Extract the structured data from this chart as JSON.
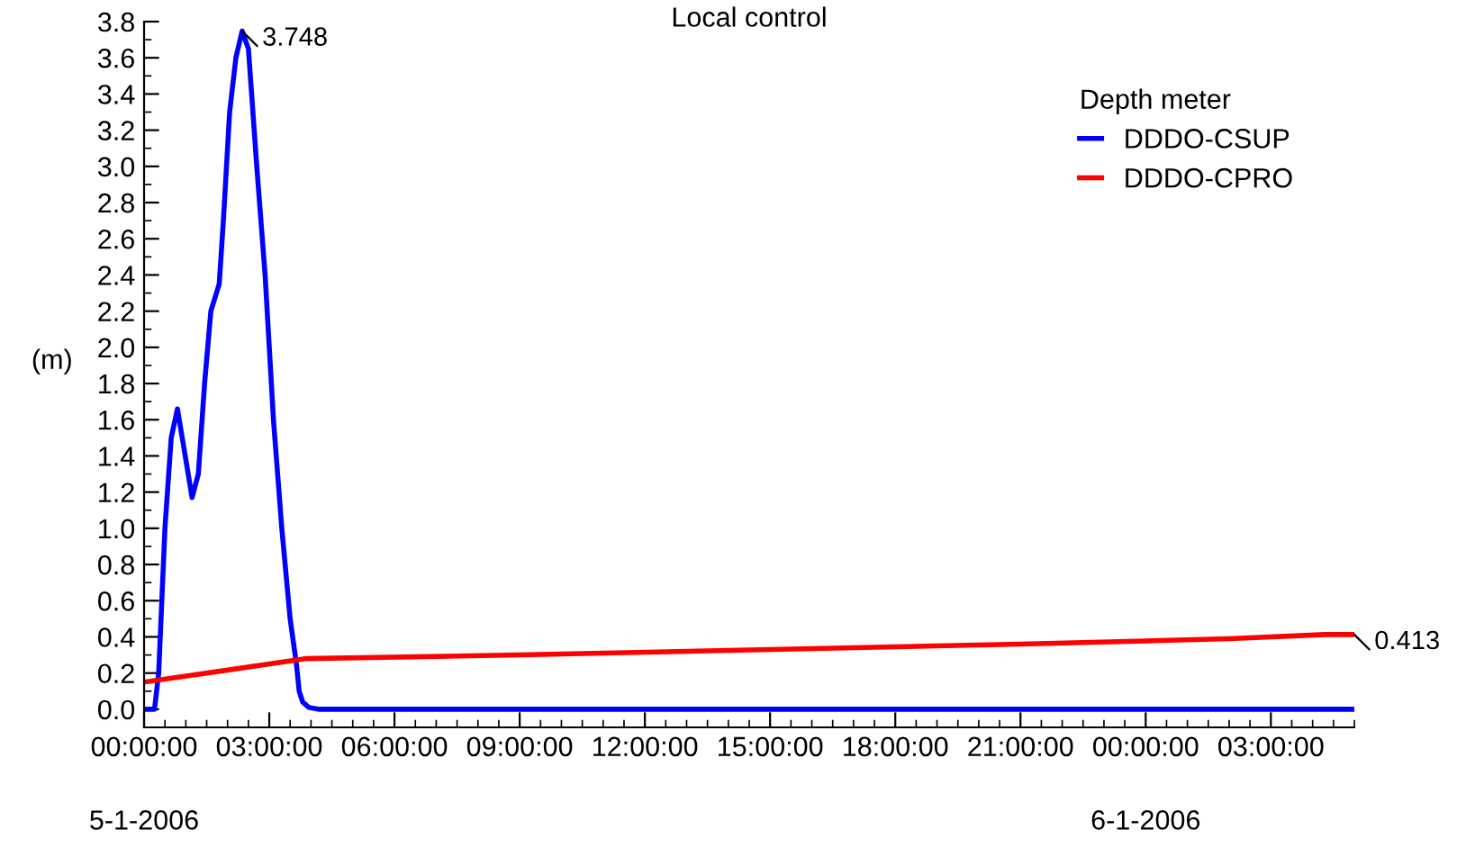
{
  "chart_data": {
    "type": "line",
    "title": "Local control",
    "ylabel": "(m)",
    "legend_title": "Depth meter",
    "legend": "top right",
    "grid": false,
    "xlim": [
      "2006-01-05T00:00",
      "2006-01-06T05:00"
    ],
    "xticks": [
      {
        "value": "2006-01-05T00:00",
        "label": "00:00:00"
      },
      {
        "value": "2006-01-05T03:00",
        "label": "03:00:00"
      },
      {
        "value": "2006-01-05T06:00",
        "label": "06:00:00"
      },
      {
        "value": "2006-01-05T09:00",
        "label": "09:00:00"
      },
      {
        "value": "2006-01-05T12:00",
        "label": "12:00:00"
      },
      {
        "value": "2006-01-05T15:00",
        "label": "15:00:00"
      },
      {
        "value": "2006-01-05T18:00",
        "label": "18:00:00"
      },
      {
        "value": "2006-01-05T21:00",
        "label": "21:00:00"
      },
      {
        "value": "2006-01-06T00:00",
        "label": "00:00:00"
      },
      {
        "value": "2006-01-06T03:00",
        "label": "03:00:00"
      }
    ],
    "ylim": [
      -0.1,
      3.8
    ],
    "yticks": [
      {
        "value": 0,
        "label": "0.0"
      },
      {
        "value": 0.2,
        "label": "0.2"
      },
      {
        "value": 0.4,
        "label": "0.4"
      },
      {
        "value": 0.6,
        "label": "0.6"
      },
      {
        "value": 0.8,
        "label": "0.8"
      },
      {
        "value": 1.0,
        "label": "1.0"
      },
      {
        "value": 1.2,
        "label": "1.2"
      },
      {
        "value": 1.4,
        "label": "1.4"
      },
      {
        "value": 1.6,
        "label": "1.6"
      },
      {
        "value": 1.8,
        "label": "1.8"
      },
      {
        "value": 2.0,
        "label": "2.0"
      },
      {
        "value": 2.2,
        "label": "2.2"
      },
      {
        "value": 2.4,
        "label": "2.4"
      },
      {
        "value": 2.6,
        "label": "2.6"
      },
      {
        "value": 2.8,
        "label": "2.8"
      },
      {
        "value": 3.0,
        "label": "3.0"
      },
      {
        "value": 3.2,
        "label": "3.2"
      },
      {
        "value": 3.4,
        "label": "3.4"
      },
      {
        "value": 3.6,
        "label": "3.6"
      },
      {
        "value": 3.8,
        "label": "3.8"
      }
    ],
    "annotations": [
      "5-1-2006",
      "6-1-2006",
      {
        "text": "3.748",
        "x": "2006-01-05T02:21",
        "y": 3.748
      },
      {
        "text": "0.413",
        "x": "2006-01-06T05:00",
        "y": 0.413
      }
    ],
    "series": [
      {
        "name": "DDDO-CSUP",
        "color": "#0000ff",
        "x": [
          "2006-01-05T00:00",
          "2006-01-05T00:15",
          "2006-01-05T00:21",
          "2006-01-05T00:30",
          "2006-01-05T00:39",
          "2006-01-05T00:48",
          "2006-01-05T00:57",
          "2006-01-05T01:09",
          "2006-01-05T01:18",
          "2006-01-05T01:27",
          "2006-01-05T01:36",
          "2006-01-05T01:48",
          "2006-01-05T01:54",
          "2006-01-05T02:03",
          "2006-01-05T02:12",
          "2006-01-05T02:21",
          "2006-01-05T02:30",
          "2006-01-05T02:42",
          "2006-01-05T02:54",
          "2006-01-05T03:06",
          "2006-01-05T03:18",
          "2006-01-05T03:30",
          "2006-01-05T03:39",
          "2006-01-05T03:43",
          "2006-01-05T03:48",
          "2006-01-05T03:57",
          "2006-01-05T04:12",
          "2006-01-06T05:00"
        ],
        "values": [
          0,
          0,
          0.2,
          1.0,
          1.5,
          1.66,
          1.45,
          1.17,
          1.3,
          1.8,
          2.2,
          2.35,
          2.7,
          3.3,
          3.6,
          3.748,
          3.65,
          3.0,
          2.4,
          1.6,
          1.0,
          0.5,
          0.25,
          0.1,
          0.04,
          0.01,
          0,
          0
        ]
      },
      {
        "name": "DDDO-CPRO",
        "color": "#ff0000",
        "x": [
          "2006-01-05T00:00",
          "2006-01-05T03:54",
          "2006-01-05T09:00",
          "2006-01-05T15:00",
          "2006-01-05T21:00",
          "2006-01-06T02:00",
          "2006-01-06T04:18",
          "2006-01-06T05:00"
        ],
        "values": [
          0.15,
          0.28,
          0.3,
          0.33,
          0.36,
          0.39,
          0.413,
          0.413
        ]
      }
    ]
  }
}
